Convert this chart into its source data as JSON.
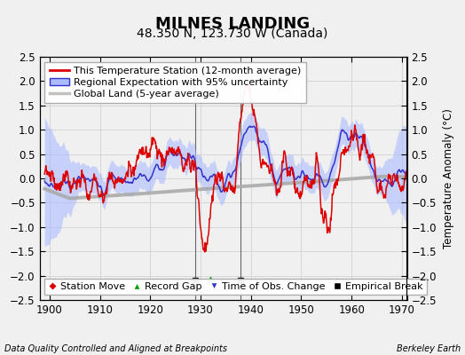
{
  "title": "MILNES LANDING",
  "subtitle": "48.350 N, 123.730 W (Canada)",
  "ylabel": "Temperature Anomaly (°C)",
  "xlabel_left": "Data Quality Controlled and Aligned at Breakpoints",
  "xlabel_right": "Berkeley Earth",
  "xlim": [
    1898,
    1971
  ],
  "ylim": [
    -2.5,
    2.5
  ],
  "yticks": [
    -2.5,
    -2,
    -1.5,
    -1,
    -0.5,
    0,
    0.5,
    1,
    1.5,
    2,
    2.5
  ],
  "xticks": [
    1900,
    1910,
    1920,
    1930,
    1940,
    1950,
    1960,
    1970
  ],
  "color_station": "#dd0000",
  "color_regional": "#3333cc",
  "color_regional_fill": "#aabbff",
  "color_global": "#c0c0c0",
  "color_global_line": "#aaaaaa",
  "vertical_lines": [
    1929,
    1938
  ],
  "marker_empirical_break": [
    1929,
    1938
  ],
  "marker_record_gap": [
    1932
  ],
  "marker_obs_change": [],
  "marker_station_move": [],
  "title_fontsize": 13,
  "subtitle_fontsize": 10,
  "ylabel_fontsize": 8.5,
  "tick_fontsize": 8.5,
  "legend_fontsize": 8,
  "background_color": "#f0f0f0"
}
